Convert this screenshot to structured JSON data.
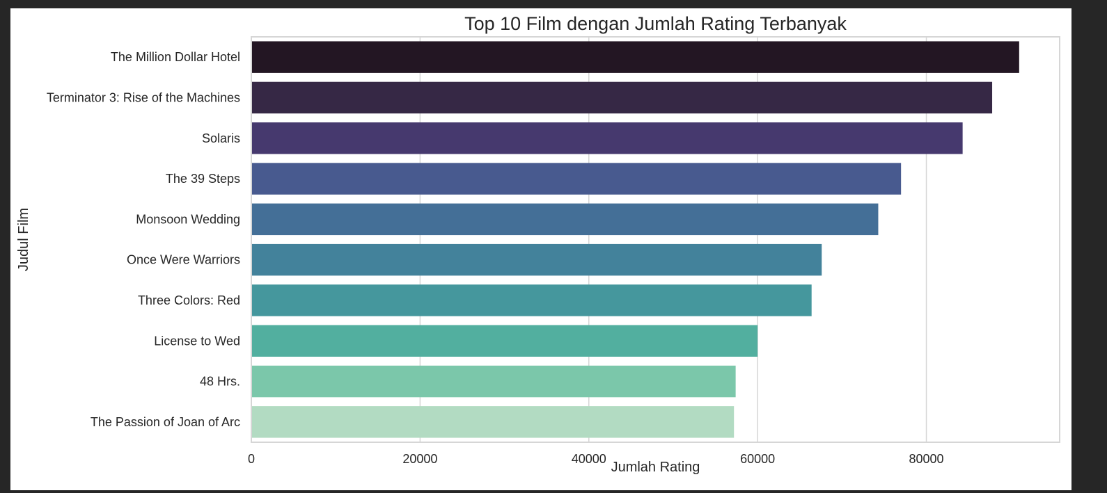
{
  "page": {
    "background": "#262626",
    "figure_background": "#ffffff"
  },
  "chart_data": {
    "type": "bar",
    "orientation": "horizontal",
    "title": "Top 10 Film dengan Jumlah Rating Terbanyak",
    "xlabel": "Jumlah Rating",
    "ylabel": "Judul Film",
    "categories": [
      "The Million Dollar Hotel",
      "Terminator 3: Rise of the Machines",
      "Solaris",
      "The 39 Steps",
      "Monsoon Wedding",
      "Once Were Warriors",
      "Three Colors: Red",
      "License to Wed",
      "48 Hrs.",
      "The Passion of Joan of Arc"
    ],
    "values": [
      91000,
      87800,
      84300,
      77000,
      74300,
      67600,
      66400,
      60000,
      57400,
      57200
    ],
    "colors": [
      "#231623",
      "#362845",
      "#46396e",
      "#485a8f",
      "#446f97",
      "#43829b",
      "#45979d",
      "#52af9f",
      "#7bc7aa",
      "#b2dbc2"
    ],
    "xlim": [
      0,
      95800
    ],
    "xticks": [
      0,
      20000,
      40000,
      60000,
      80000
    ],
    "xtick_labels": [
      "0",
      "20000",
      "40000",
      "60000",
      "80000"
    ],
    "grid": true,
    "grid_color": "#d6d6d6"
  }
}
